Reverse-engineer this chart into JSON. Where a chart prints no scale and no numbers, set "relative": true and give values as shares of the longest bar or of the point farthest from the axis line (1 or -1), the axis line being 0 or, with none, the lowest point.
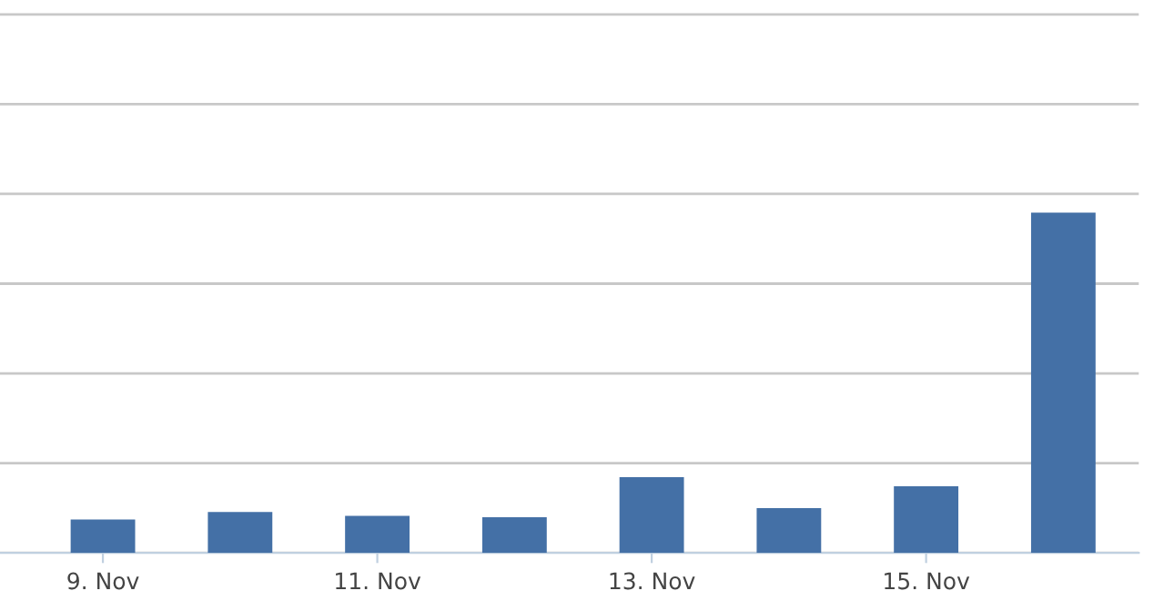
{
  "chart_data": {
    "type": "bar",
    "relative": true,
    "categories": [
      "9. Nov",
      null,
      "11. Nov",
      null,
      "13. Nov",
      null,
      "15. Nov",
      null
    ],
    "values": [
      0.098,
      0.12,
      0.109,
      0.105,
      0.223,
      0.132,
      0.196,
      1
    ],
    "color": "#4470a6",
    "grid": "y"
  }
}
